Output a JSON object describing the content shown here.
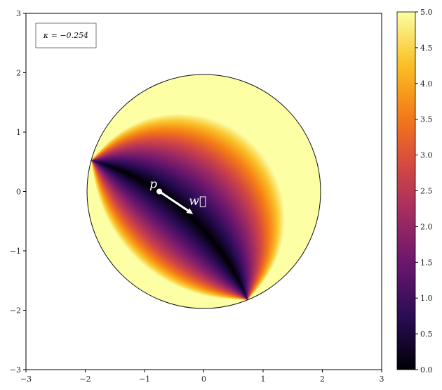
{
  "chart_data": {
    "type": "heatmap",
    "title": "",
    "xlabel": "",
    "ylabel": "",
    "xlim": [
      -3,
      3
    ],
    "ylim": [
      -3,
      3
    ],
    "x_ticks": [
      "−3",
      "−2",
      "−1",
      "0",
      "1",
      "2",
      "3"
    ],
    "y_ticks": [
      "−3",
      "−2",
      "−1",
      "0",
      "1",
      "2",
      "3"
    ],
    "disk": {
      "center": [
        0,
        0
      ],
      "radius": 1.97
    },
    "curvature_label": "κ = −0.254",
    "point": {
      "label": "p",
      "x": -0.75,
      "y": 0.0
    },
    "vector": {
      "label": "w⃗",
      "from": [
        -0.75,
        0.0
      ],
      "to": [
        -0.18,
        -0.38
      ]
    },
    "colorbar": {
      "colormap": "inferno",
      "min": 0.0,
      "max": 5.0,
      "ticks": [
        "0.0",
        "0.5",
        "1.0",
        "1.5",
        "2.0",
        "2.5",
        "3.0",
        "3.5",
        "4.0",
        "4.5",
        "5.0"
      ]
    },
    "legend_placement": "top-left",
    "grid": false
  }
}
